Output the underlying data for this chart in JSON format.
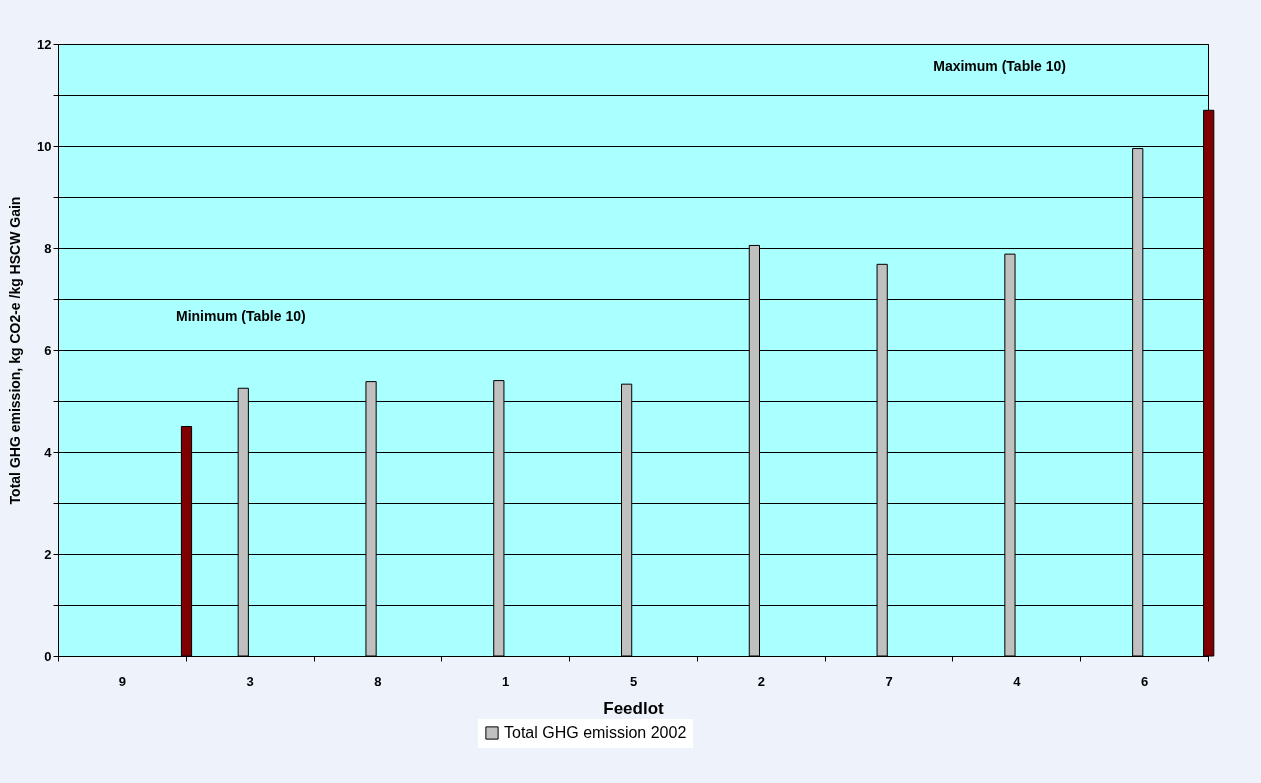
{
  "chart_data": {
    "type": "bar",
    "xlabel": "Feedlot",
    "ylabel": "Total GHG emission, kg CO2-e /kg HSCW Gain",
    "categories": [
      "9",
      "3",
      "8",
      "1",
      "5",
      "2",
      "7",
      "4",
      "6"
    ],
    "series": [
      {
        "name": "Total GHG emission 2002",
        "color": "#c0c0c0",
        "values": [
          null,
          5.25,
          5.38,
          5.4,
          5.33,
          8.05,
          7.68,
          7.88,
          9.95
        ]
      },
      {
        "color": "#800000",
        "values": [
          4.5,
          null,
          null,
          null,
          null,
          null,
          null,
          null,
          10.7
        ]
      }
    ],
    "ylim": [
      0,
      12
    ],
    "yticks": [
      0,
      {
        "value": 1,
        "label": null
      },
      2,
      {
        "value": 3,
        "label": null
      },
      4,
      {
        "value": 5,
        "label": null
      },
      6,
      {
        "value": 7,
        "label": null
      },
      8,
      {
        "value": 9,
        "label": null
      },
      10,
      {
        "value": 11,
        "label": null
      },
      12
    ],
    "grid": "y",
    "legend": "bottom",
    "annotations": [
      "Minimum (Table 10)",
      "Maximum (Table 10)"
    ]
  }
}
